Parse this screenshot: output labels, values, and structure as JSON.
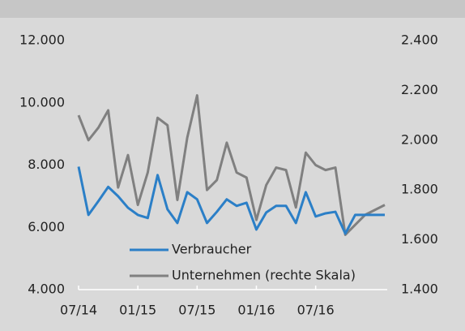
{
  "chart_data": {
    "type": "line",
    "categories": [
      "07/14",
      null,
      null,
      null,
      null,
      null,
      "01/15",
      null,
      null,
      null,
      null,
      null,
      "07/15",
      null,
      null,
      null,
      null,
      null,
      "01/16",
      null,
      null,
      null,
      null,
      null,
      "07/16",
      null,
      null,
      null,
      null,
      null,
      null,
      null
    ],
    "series": [
      {
        "name": "Verbraucher",
        "color": "#2b7fc7",
        "values": [
          7950,
          6400,
          6840,
          7300,
          7000,
          6630,
          6400,
          6300,
          7680,
          6580,
          6140,
          7130,
          6900,
          6140,
          6500,
          6900,
          6690,
          6790,
          5930,
          6480,
          6690,
          6690,
          6140,
          7130,
          6350,
          6450,
          6500,
          5800,
          6400,
          6400,
          6400,
          6400
        ]
      },
      {
        "name": "Unternehmen (rechte Skala)",
        "color": "#808080",
        "axis": "y2",
        "values": [
          2100,
          2000,
          2050,
          2120,
          1810,
          1940,
          1740,
          1870,
          2090,
          2060,
          1760,
          2010,
          2180,
          1800,
          1840,
          1990,
          1870,
          1850,
          1680,
          1820,
          1890,
          1880,
          1730,
          1950,
          1900,
          1880,
          1890,
          1620,
          1660,
          1700,
          1720,
          1740
        ]
      }
    ],
    "ylim": [
      4000,
      12000
    ],
    "yticks": [
      {
        "value": 4000,
        "label": "4.000"
      },
      {
        "value": 6000,
        "label": "6.000"
      },
      {
        "value": 8000,
        "label": "8.000"
      },
      {
        "value": 10000,
        "label": "10.000"
      },
      {
        "value": 12000,
        "label": "12.000"
      }
    ],
    "y2lim": [
      1400,
      2400
    ],
    "y2ticks": [
      {
        "value": 1400,
        "label": "1.400"
      },
      {
        "value": 1600,
        "label": "1.600"
      },
      {
        "value": 1800,
        "label": "1.800"
      },
      {
        "value": 2000,
        "label": "2.000"
      },
      {
        "value": 2200,
        "label": "2.200"
      },
      {
        "value": 2400,
        "label": "2.400"
      }
    ],
    "grid": false,
    "legend": "lower left"
  }
}
